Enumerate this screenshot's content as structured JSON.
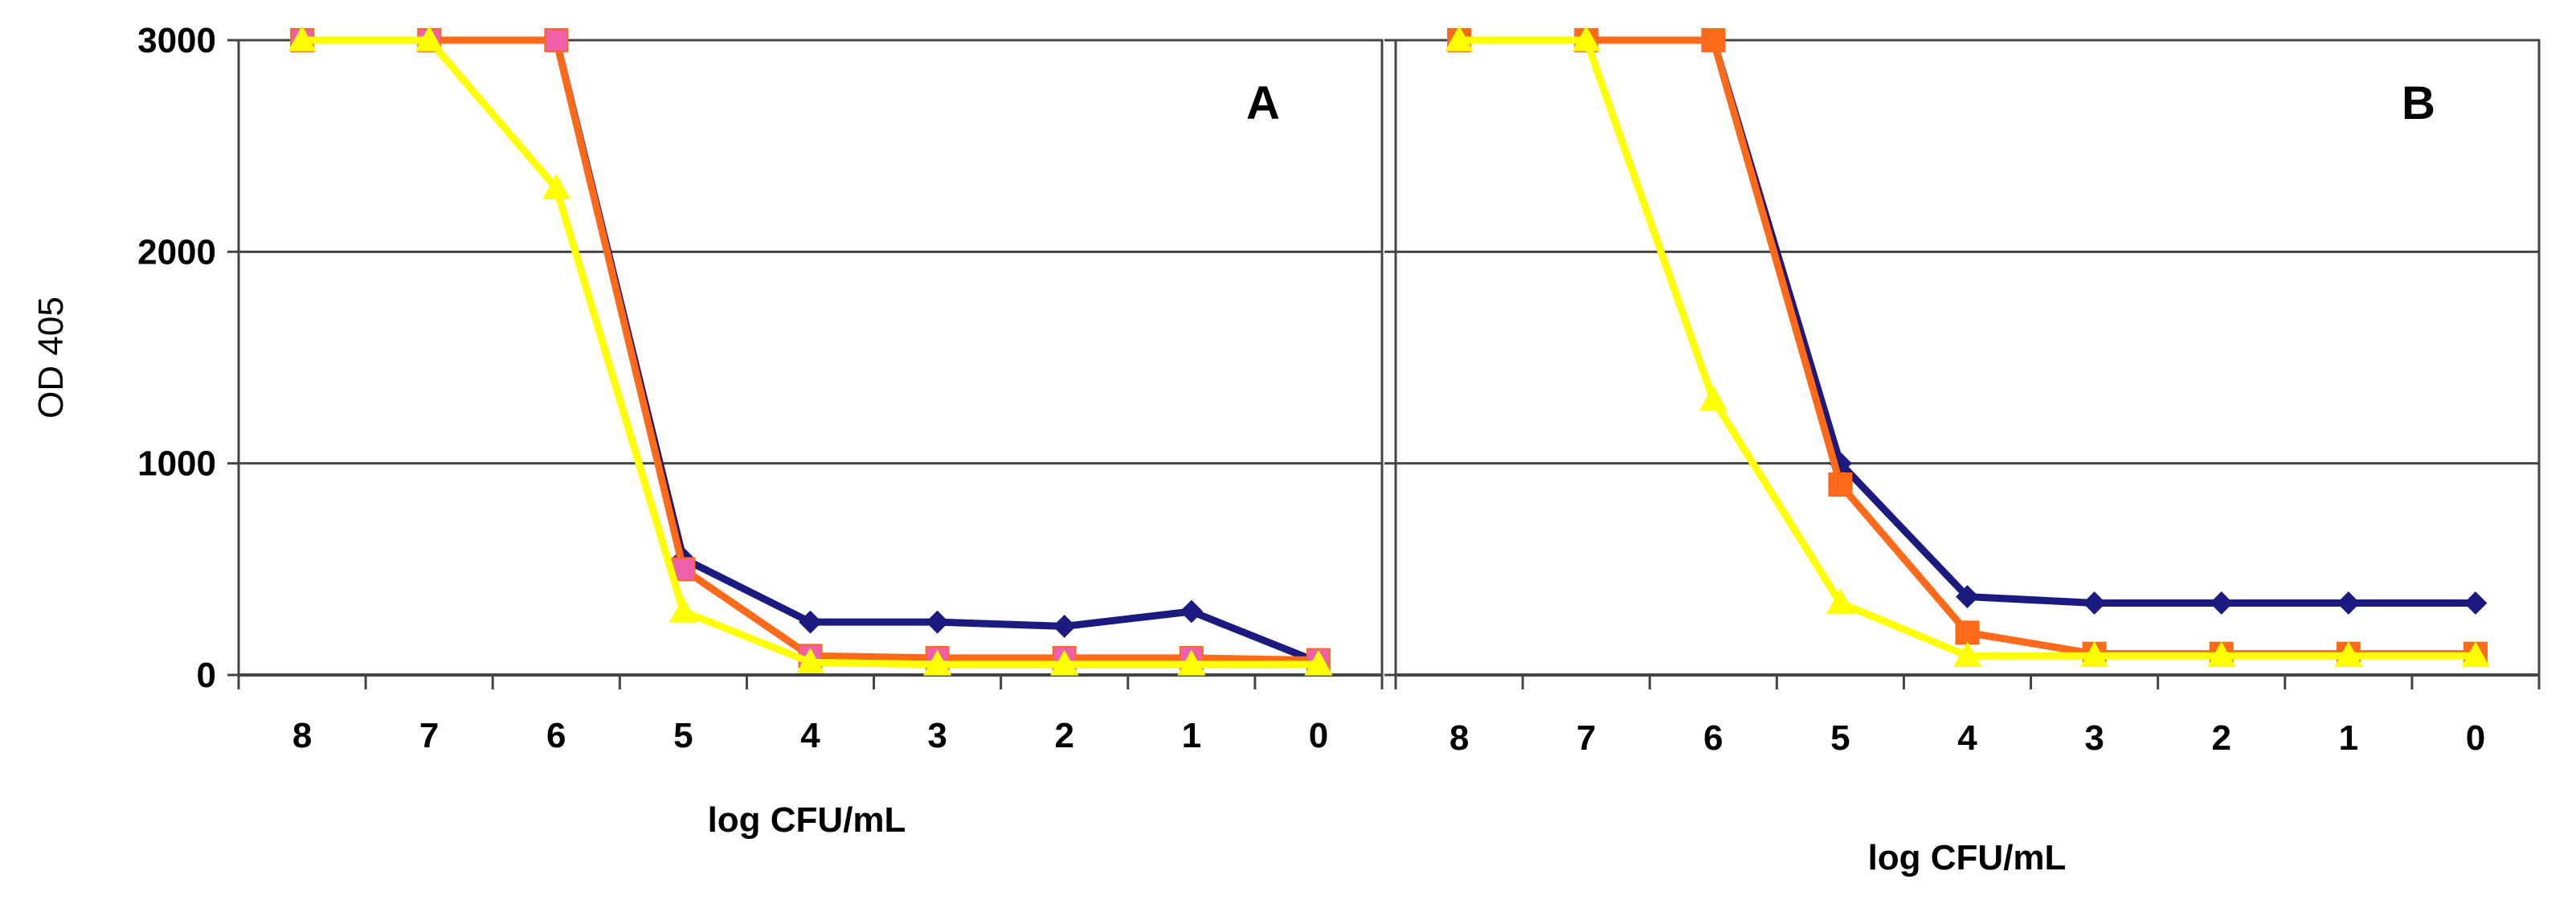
{
  "chart_data": [
    {
      "type": "line",
      "panel_label": "A",
      "xlabel": "log CFU/mL",
      "ylabel": "OD 405",
      "x": [
        8,
        7,
        6,
        5,
        4,
        3,
        2,
        1,
        0
      ],
      "x_ticks": [
        "8",
        "7",
        "6",
        "5",
        "4",
        "3",
        "2",
        "1",
        "0"
      ],
      "x_reversed": true,
      "ylim": [
        0,
        3000
      ],
      "y_ticks": [
        "0",
        "1000",
        "2000",
        "3000"
      ],
      "grid": "horizontal",
      "legend": "none",
      "series": [
        {
          "color": "#1a1a80",
          "marker": "diamond",
          "values": [
            3000,
            3000,
            3000,
            550,
            250,
            250,
            230,
            300,
            60
          ]
        },
        {
          "color": "#ff6a1a",
          "marker": "square",
          "marker_color": "#f060a8",
          "values": [
            3000,
            3000,
            3000,
            500,
            90,
            80,
            80,
            80,
            70
          ]
        },
        {
          "color": "#ffff00",
          "marker": "triangle",
          "values": [
            3000,
            3000,
            2300,
            300,
            60,
            50,
            50,
            50,
            50
          ]
        }
      ]
    },
    {
      "type": "line",
      "panel_label": "B",
      "xlabel": "log CFU/mL",
      "ylabel": "",
      "x": [
        8,
        7,
        6,
        5,
        4,
        3,
        2,
        1,
        0
      ],
      "x_ticks": [
        "8",
        "7",
        "6",
        "5",
        "4",
        "3",
        "2",
        "1",
        "0"
      ],
      "x_reversed": true,
      "ylim": [
        0,
        3000
      ],
      "y_ticks": [],
      "grid": "horizontal",
      "legend": "none",
      "series": [
        {
          "color": "#1a1a80",
          "marker": "diamond",
          "values": [
            3000,
            3000,
            3000,
            1000,
            370,
            340,
            340,
            340,
            340
          ]
        },
        {
          "color": "#ff6a1a",
          "marker": "square",
          "marker_color": "#ff6a1a",
          "values": [
            3000,
            3000,
            3000,
            900,
            200,
            100,
            100,
            100,
            100
          ]
        },
        {
          "color": "#ffff00",
          "marker": "triangle",
          "values": [
            3000,
            3000,
            1300,
            340,
            90,
            90,
            90,
            90,
            90
          ]
        }
      ]
    }
  ]
}
